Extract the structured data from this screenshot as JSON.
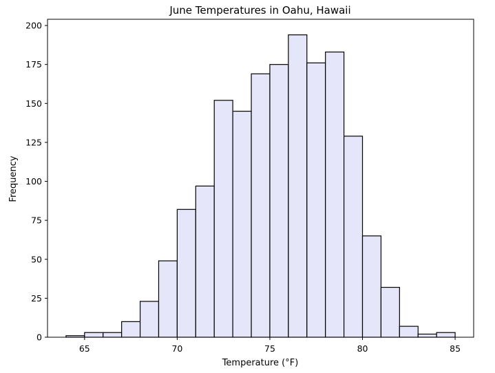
{
  "chart_data": {
    "type": "bar",
    "title": "June Temperatures in Oahu, Hawaii",
    "xlabel": "Temperature (°F)",
    "ylabel": "Frequency",
    "xlim": [
      63,
      86
    ],
    "ylim": [
      0,
      204
    ],
    "xticks": [
      65,
      70,
      75,
      80,
      85
    ],
    "yticks": [
      0,
      25,
      50,
      75,
      100,
      125,
      150,
      175,
      200
    ],
    "grid": false,
    "bin_edges": [
      64,
      65,
      66,
      67,
      68,
      69,
      70,
      71,
      72,
      73,
      74,
      75,
      76,
      77,
      78,
      79,
      80,
      81,
      82,
      83,
      84,
      85
    ],
    "values": [
      1,
      3,
      3,
      10,
      23,
      49,
      82,
      97,
      152,
      145,
      169,
      175,
      194,
      176,
      183,
      129,
      65,
      32,
      7,
      2,
      3
    ],
    "colors": {
      "bar_fill": "#e6e6fa",
      "bar_edge": "#000000"
    }
  }
}
